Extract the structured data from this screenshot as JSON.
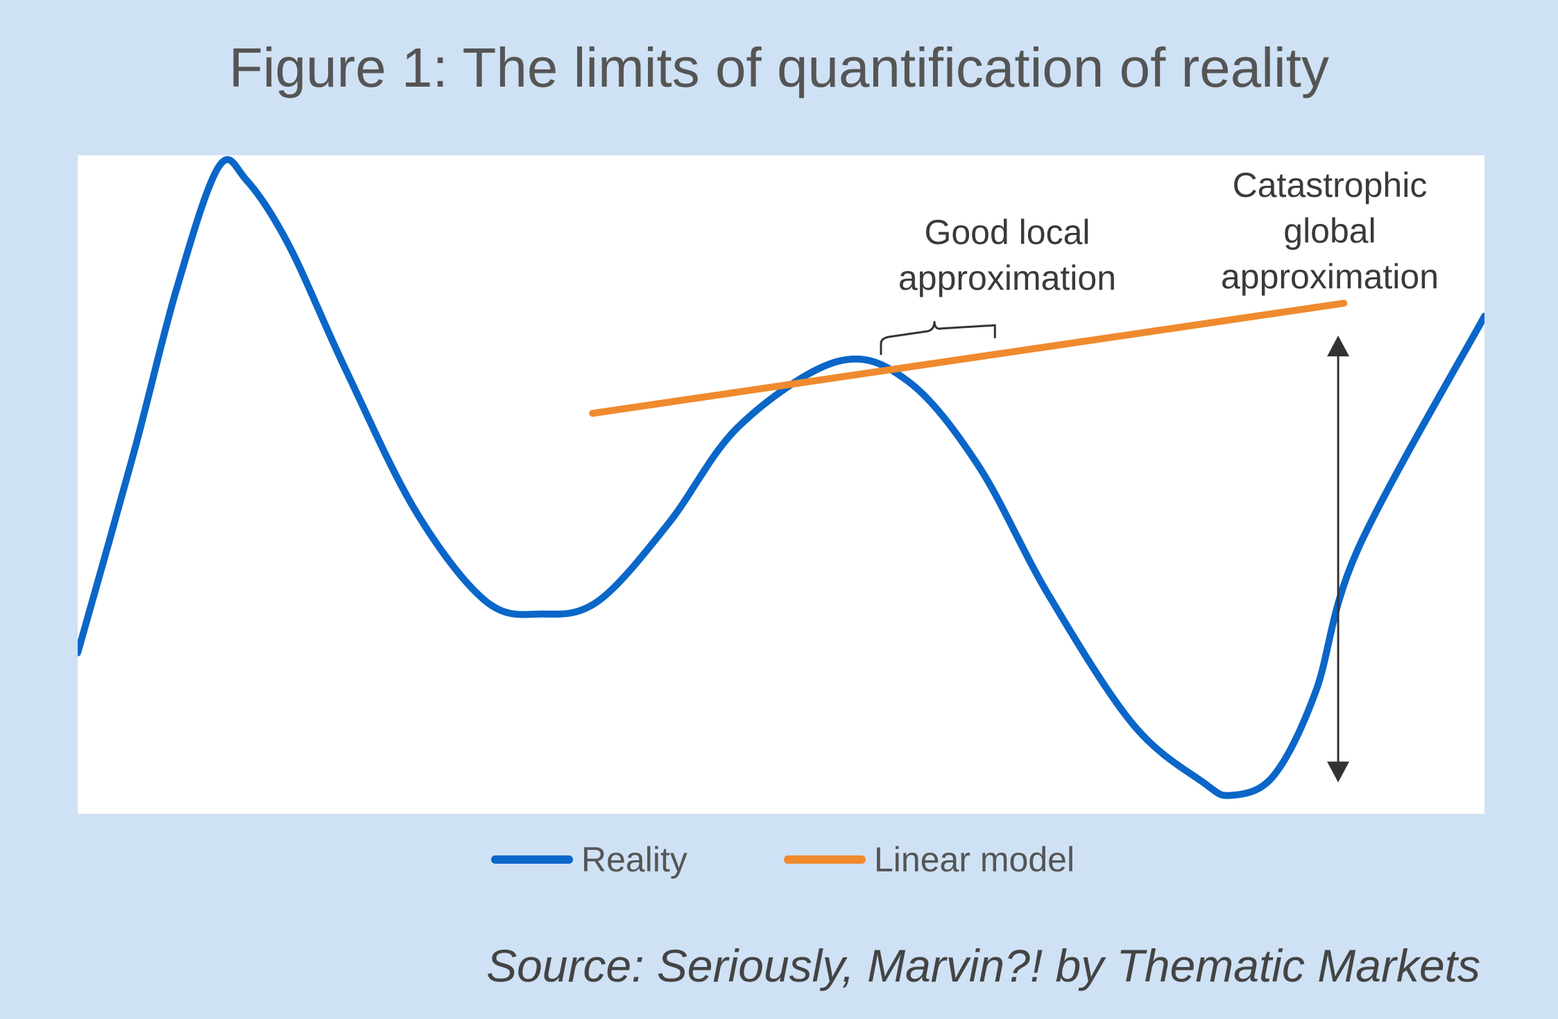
{
  "title": "Figure 1: The limits of quantification of reality",
  "source": "Source: Seriously, Marvin?! by Thematic Markets",
  "colors": {
    "reality": "#0a66c8",
    "linear_model": "#ef8a2e",
    "background": "#cfe1f4",
    "plot_bg": "#ffffff",
    "arrow": "#333333"
  },
  "chart_data": {
    "type": "line",
    "title": "Figure 1: The limits of quantification of reality",
    "xlabel": "",
    "ylabel": "",
    "axes_visible": false,
    "grid": false,
    "legend_position": "bottom",
    "xlim": [
      0,
      100
    ],
    "ylim": [
      0,
      100
    ],
    "series": [
      {
        "name": "Reality",
        "color": "#0a66c8",
        "points": [
          [
            0,
            24
          ],
          [
            4,
            55
          ],
          [
            7,
            80
          ],
          [
            10,
            99
          ],
          [
            12,
            97
          ],
          [
            15,
            87
          ],
          [
            19,
            68
          ],
          [
            24,
            46
          ],
          [
            29,
            32
          ],
          [
            33,
            30
          ],
          [
            37,
            32
          ],
          [
            42,
            44
          ],
          [
            47,
            59
          ],
          [
            54,
            69
          ],
          [
            59,
            66
          ],
          [
            64,
            53
          ],
          [
            69,
            33
          ],
          [
            75,
            13
          ],
          [
            80,
            4
          ],
          [
            82,
            2
          ],
          [
            85,
            5
          ],
          [
            88,
            18
          ],
          [
            91,
            40
          ],
          [
            100,
            76
          ]
        ]
      },
      {
        "name": "Linear model",
        "color": "#ef8a2e",
        "points": [
          [
            36.6,
            61
          ],
          [
            90,
            78
          ]
        ]
      }
    ],
    "annotations": [
      {
        "text": "Good local\napproximation",
        "x": 60.9,
        "y": 84,
        "bracket": [
          57.1,
          65.2
        ]
      },
      {
        "text": "Catastrophic\nglobal\napproximation",
        "x": 88.5,
        "y": 96,
        "arrow": {
          "x": 89.6,
          "from_y": 73,
          "to_y": 4
        }
      }
    ]
  },
  "legend": {
    "items": [
      {
        "label": "Reality",
        "color": "#0a66c8"
      },
      {
        "label": "Linear model",
        "color": "#ef8a2e"
      }
    ]
  }
}
